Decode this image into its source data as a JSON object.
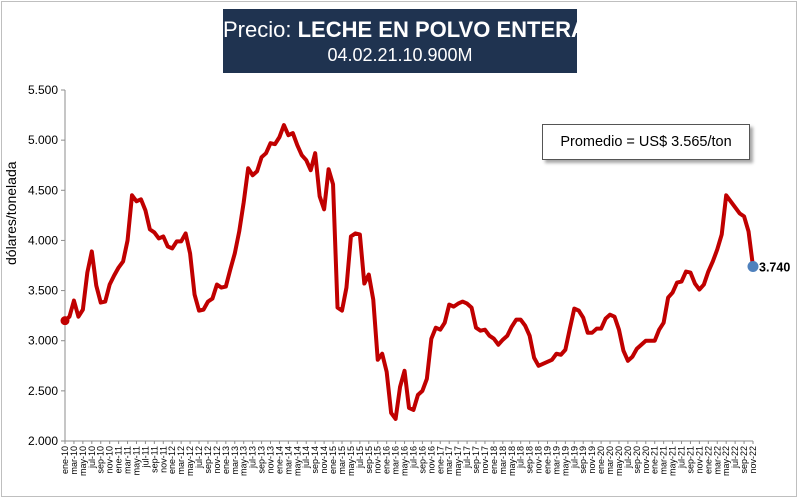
{
  "title": {
    "prefix": "Precio:",
    "product": "LECHE EN POLVO ENTERA",
    "code": "04.02.21.10.900M"
  },
  "average_label": "Promedio = US$ 3.565/ton",
  "colors": {
    "title_bg": "#1f3350",
    "line": "#c00000",
    "last_point": "#4f81bd"
  },
  "chart_data": {
    "type": "line",
    "title": "Precio: LECHE EN POLVO ENTERA",
    "ylabel": "dólares/tonelada",
    "xlabel": "",
    "ylim": [
      2000,
      5500
    ],
    "yticks": [
      2000,
      2500,
      3000,
      3500,
      4000,
      4500,
      5000,
      5500
    ],
    "ytick_labels": [
      "2.000",
      "2.500",
      "3.000",
      "3.500",
      "4.000",
      "4.500",
      "5.000",
      "5.500"
    ],
    "grid": false,
    "legend": "none",
    "last_label": "3.740",
    "x_tick_labels": [
      "ene-10",
      "mar-10",
      "may-10",
      "jul-10",
      "sep-10",
      "nov-10",
      "ene-11",
      "mar-11",
      "may-11",
      "jul-11",
      "sep-11",
      "nov-11",
      "ene-12",
      "mar-12",
      "may-12",
      "jul-12",
      "sep-12",
      "nov-12",
      "ene-13",
      "mar-13",
      "may-13",
      "jul-13",
      "sep-13",
      "nov-13",
      "ene-14",
      "mar-14",
      "may-14",
      "jul-14",
      "sep-14",
      "nov-14",
      "ene-15",
      "mar-15",
      "may-15",
      "jul-15",
      "sep-15",
      "nov-15",
      "ene-16",
      "mar-16",
      "may-16",
      "jul-16",
      "sep-16",
      "nov-16",
      "ene-17",
      "mar-17",
      "may-17",
      "jul-17",
      "sep-17",
      "nov-17",
      "ene-18",
      "mar-18",
      "may-18",
      "jul-18",
      "sep-18",
      "nov-18",
      "ene-19",
      "mar-19",
      "may-19",
      "jul-19",
      "sep-19",
      "nov-19",
      "ene-20",
      "mar-20",
      "may-20",
      "jul-20",
      "sep-20",
      "nov-20",
      "ene-21",
      "mar-21",
      "may-21",
      "jul-21",
      "sep-21",
      "nov-21",
      "ene-22",
      "mar-22",
      "may-22",
      "jul-22",
      "sep-22",
      "nov-22"
    ],
    "series": [
      {
        "values": [
          3200,
          3240,
          3400,
          3240,
          3310,
          3680,
          3890,
          3550,
          3380,
          3390,
          3560,
          3650,
          3730,
          3790,
          4000,
          4450,
          4390,
          4410,
          4300,
          4110,
          4080,
          4020,
          4040,
          3940,
          3920,
          3990,
          3990,
          4070,
          3870,
          3460,
          3300,
          3310,
          3390,
          3420,
          3560,
          3530,
          3540,
          3710,
          3870,
          4090,
          4380,
          4720,
          4650,
          4690,
          4830,
          4870,
          4970,
          4960,
          5030,
          5150,
          5050,
          5070,
          4950,
          4850,
          4800,
          4700,
          4870,
          4440,
          4310,
          4710,
          4560,
          3330,
          3300,
          3530,
          4040,
          4070,
          4060,
          3570,
          3660,
          3410,
          2810,
          2870,
          2690,
          2280,
          2220,
          2540,
          2700,
          2330,
          2310,
          2460,
          2500,
          2620,
          3020,
          3130,
          3110,
          3180,
          3360,
          3340,
          3370,
          3390,
          3370,
          3330,
          3130,
          3100,
          3110,
          3050,
          3020,
          2960,
          3010,
          3050,
          3140,
          3210,
          3210,
          3150,
          3050,
          2830,
          2750,
          2770,
          2790,
          2810,
          2870,
          2860,
          2910,
          3120,
          3320,
          3300,
          3230,
          3080,
          3080,
          3120,
          3120,
          3220,
          3260,
          3240,
          3110,
          2900,
          2800,
          2840,
          2920,
          2960,
          3000,
          3000,
          3000,
          3110,
          3180,
          3430,
          3480,
          3580,
          3590,
          3690,
          3680,
          3570,
          3510,
          3560,
          3690,
          3790,
          3910,
          4060,
          4450,
          4390,
          4330,
          4270,
          4240,
          4090,
          3740
        ]
      }
    ]
  }
}
